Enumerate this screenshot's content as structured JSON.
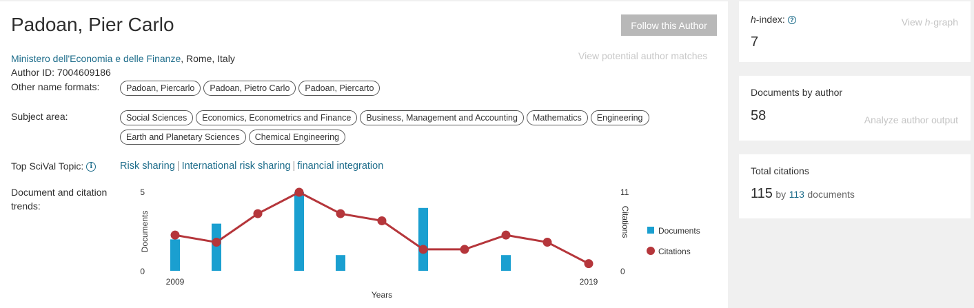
{
  "author": {
    "name": "Padoan, Pier Carlo",
    "affiliation_link": "Ministero dell'Economia e delle Finanze",
    "affiliation_location": ", Rome, Italy",
    "author_id": "Author ID: 7004609186",
    "follow_label": "Follow this Author",
    "matches_label": "View potential author matches"
  },
  "other_names": {
    "label": "Other name formats:",
    "items": [
      "Padoan, Piercarlo",
      "Padoan, Pietro Carlo",
      "Padoan, Piercarto"
    ]
  },
  "subject_area": {
    "label": "Subject area:",
    "row1": [
      "Social Sciences",
      "Economics, Econometrics and Finance",
      "Business, Management and Accounting",
      "Mathematics",
      "Engineering"
    ],
    "row2": [
      "Earth and Planetary Sciences",
      "Chemical Engineering"
    ]
  },
  "topic": {
    "label": "Top SciVal Topic:",
    "info_icon": "i",
    "items": [
      "Risk sharing",
      "International risk sharing",
      "financial integration"
    ],
    "separator": "|"
  },
  "trends": {
    "label": "Document and citation trends:"
  },
  "chart_data": {
    "type": "bar",
    "title": "",
    "xlabel": "Years",
    "ylabel": "Documents",
    "y2label": "Citations",
    "x": [
      2009,
      2010,
      2011,
      2012,
      2013,
      2014,
      2015,
      2016,
      2017,
      2018,
      2019
    ],
    "x_tick_labels": [
      "2009",
      "2019"
    ],
    "ylim": [
      0,
      5
    ],
    "y2lim": [
      0,
      11
    ],
    "y_ticks": [
      "0",
      "5"
    ],
    "y2_ticks": [
      "0",
      "11"
    ],
    "series": [
      {
        "name": "Documents",
        "type": "bar",
        "color": "#1a9fd0",
        "values": [
          2,
          3,
          0,
          5,
          1,
          0,
          4,
          0,
          1,
          0,
          0
        ]
      },
      {
        "name": "Citations",
        "type": "line",
        "color": "#b5363b",
        "values": [
          5,
          4,
          8,
          11,
          8,
          7,
          3,
          3,
          5,
          4,
          1
        ]
      }
    ],
    "legend_position": "right"
  },
  "hindex": {
    "label": "-index:",
    "label_italic": "h",
    "help_icon": "?",
    "value": "7",
    "link_prefix": "View ",
    "link_italic": "h",
    "link_suffix": "-graph"
  },
  "documents": {
    "label": "Documents by author",
    "value": "58",
    "link": "Analyze author output"
  },
  "citations": {
    "label": "Total citations",
    "value": "115",
    "by": "by",
    "doc_count": "113",
    "suffix": "documents"
  }
}
